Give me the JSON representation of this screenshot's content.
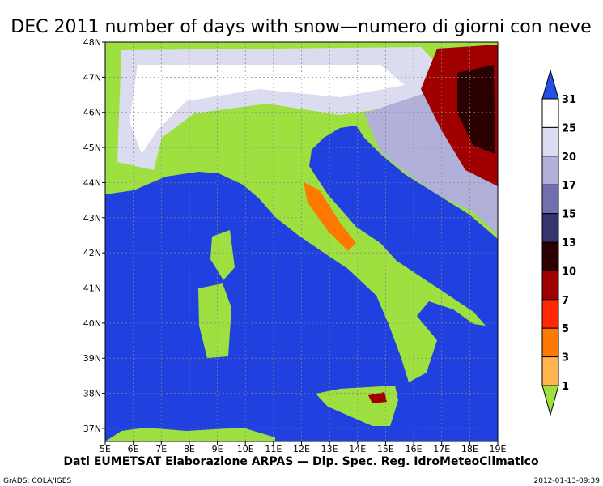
{
  "map": {
    "title": "DEC 2011 number of days with snow—numero di giorni con neve",
    "lon_labels": [
      "5E",
      "6E",
      "7E",
      "8E",
      "9E",
      "10E",
      "11E",
      "12E",
      "13E",
      "14E",
      "15E",
      "16E",
      "17E",
      "18E",
      "19E"
    ],
    "lat_labels": [
      "48N",
      "47N",
      "46N",
      "45N",
      "44N",
      "43N",
      "42N",
      "41N",
      "40N",
      "39N",
      "38N",
      "37N"
    ],
    "credits": "Dati EUMETSAT    Elaborazione ARPAS — Dip. Spec. Reg. IdroMeteoClimatico"
  },
  "legend": {
    "levels": [
      31,
      25,
      20,
      17,
      15,
      13,
      10,
      7,
      5,
      3,
      1
    ],
    "colors": [
      "#ffffff",
      "#dcdcf0",
      "#b0b0d8",
      "#7070b0",
      "#34346e",
      "#2a0000",
      "#a00000",
      "#ff2800",
      "#ff7800",
      "#ffb450"
    ],
    "above_color": "#2050e8",
    "below_color": "#9ee040"
  },
  "footer": {
    "left": "GrADS: COLA/IGES",
    "right": "2012-01-13-09:39"
  }
}
